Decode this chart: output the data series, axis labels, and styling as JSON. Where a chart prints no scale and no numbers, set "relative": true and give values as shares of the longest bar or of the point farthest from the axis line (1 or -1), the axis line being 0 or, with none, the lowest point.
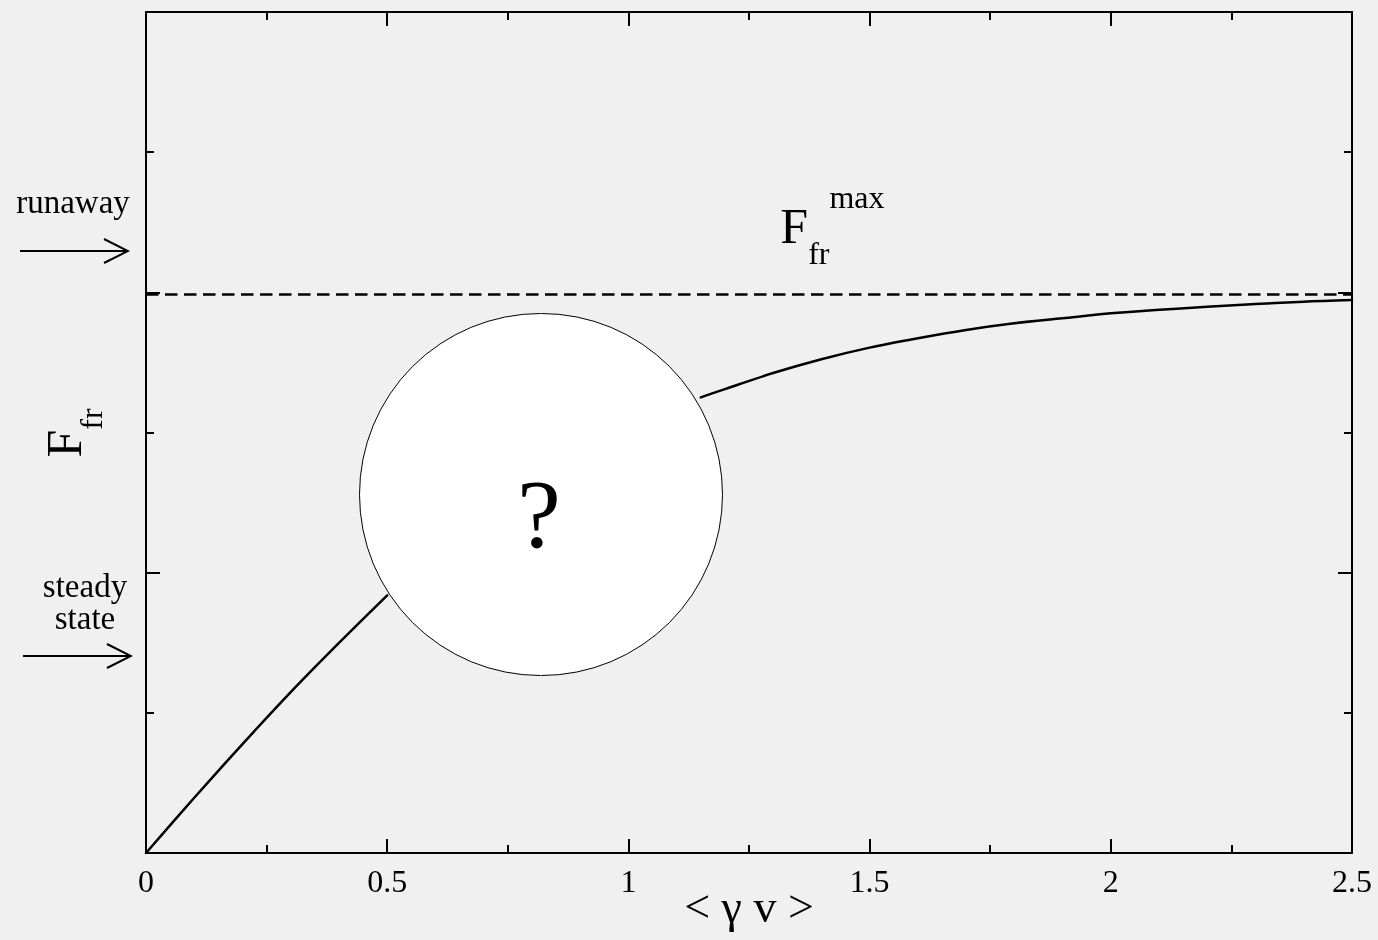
{
  "chart_data": {
    "type": "line",
    "xlabel": "< γ v >",
    "ylabel": "F$_{fr}$",
    "annotations": [
      "runaway",
      "steady state",
      "?"
    ],
    "x": [
      0,
      0.1,
      0.2,
      0.3,
      0.4,
      0.5,
      0.8,
      1.15,
      1.2,
      1.3,
      1.4,
      1.5,
      1.6,
      1.7,
      1.8,
      1.9,
      2,
      2.2,
      2.4,
      2.5
    ],
    "series": [
      {
        "color": "#000000",
        "values": [
          0,
          0.1,
          0.197,
          0.291,
          0.38,
          0.466,
          null,
          0.824,
          0.839,
          0.868,
          0.893,
          0.914,
          0.931,
          0.946,
          0.958,
          0.967,
          0.976,
          0.988,
          0.997,
          1
        ]
      }
    ],
    "relative": true,
    "xlim": [
      0,
      2.5
    ],
    "xticks": [
      0,
      {
        "value": 0.25,
        "label": null
      },
      0.5,
      {
        "value": 0.75,
        "label": null
      },
      1,
      {
        "value": 1.25,
        "label": null
      },
      1.5,
      {
        "value": 1.75,
        "label": null
      },
      2,
      {
        "value": 2.25,
        "label": null
      },
      2.5
    ],
    "ref_lines": [
      {
        "axis": "y",
        "value": 1.014,
        "label": "F$_{fr}$$^{max}$",
        "line_style": "dashed",
        "color": "#000000"
      }
    ],
    "marker": "none",
    "line_style": "solid"
  }
}
